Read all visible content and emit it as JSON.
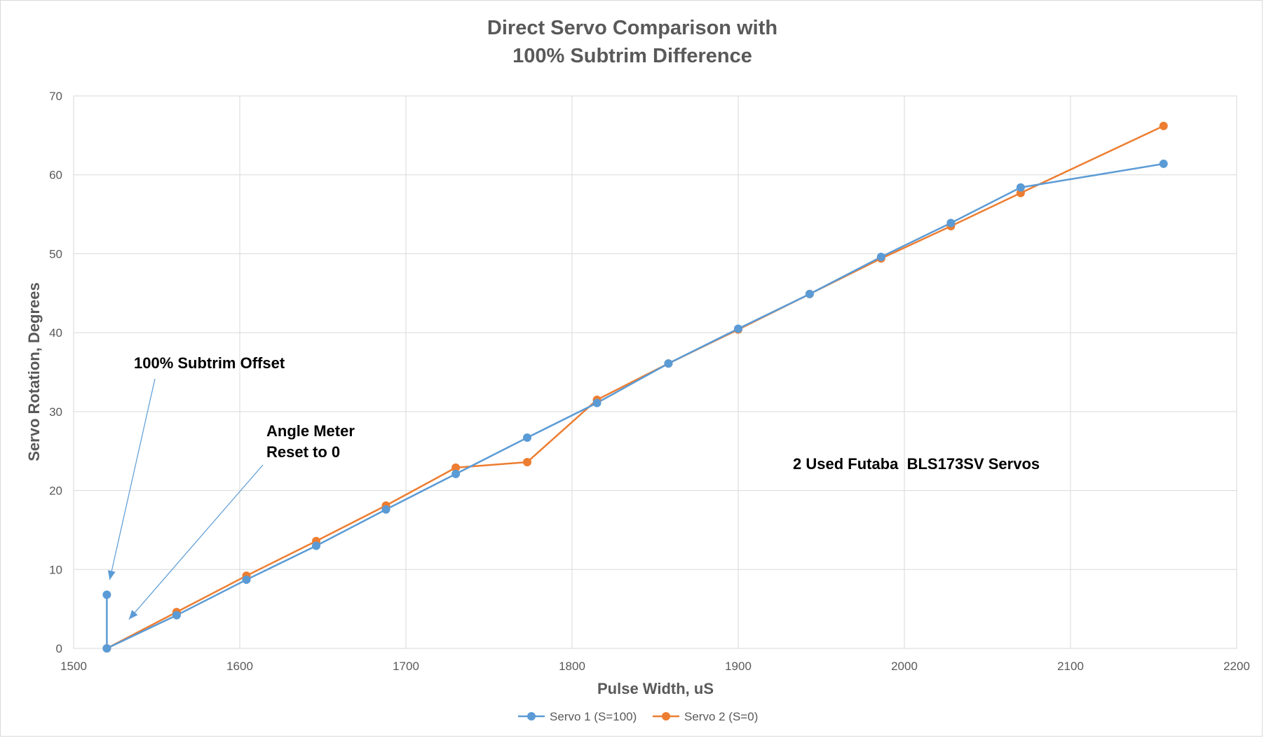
{
  "chart_data": {
    "type": "line",
    "title": [
      "Direct Servo Comparison with",
      "100% Subtrim Difference"
    ],
    "xlabel": "Pulse Width, uS",
    "ylabel": "Servo Rotation, Degrees",
    "xlim": [
      1500,
      2200
    ],
    "ylim": [
      0,
      70
    ],
    "xticks": [
      1500,
      1600,
      1700,
      1800,
      1900,
      2000,
      2100,
      2200
    ],
    "yticks": [
      0,
      10,
      20,
      30,
      40,
      50,
      60,
      70
    ],
    "grid": true,
    "legend_position": "bottom",
    "series": [
      {
        "name": "Servo 1 (S=100)",
        "color": "#5b9bd5",
        "x": [
          1520,
          1520,
          1562,
          1604,
          1646,
          1688,
          1730,
          1773,
          1815,
          1858,
          1900,
          1943,
          1986,
          2028,
          2070,
          2156
        ],
        "y": [
          6.8,
          0,
          4.2,
          8.7,
          13.0,
          17.6,
          22.1,
          26.7,
          31.1,
          36.1,
          40.5,
          44.9,
          49.6,
          53.9,
          58.4,
          61.4
        ]
      },
      {
        "name": "Servo 2 (S=0)",
        "color": "#ed7d31",
        "x": [
          1520,
          1562,
          1604,
          1646,
          1688,
          1730,
          1773,
          1815,
          1858,
          1900,
          1943,
          1986,
          2028,
          2070,
          2156
        ],
        "y": [
          0,
          4.6,
          9.2,
          13.6,
          18.1,
          22.9,
          23.6,
          31.5,
          36.1,
          40.4,
          44.9,
          49.4,
          53.5,
          57.7,
          66.2
        ]
      }
    ],
    "annotations": [
      {
        "text": [
          "100% Subtrim Offset"
        ],
        "points_to": [
          1520,
          8.5
        ]
      },
      {
        "text": [
          "Angle Meter",
          "Reset to 0"
        ],
        "points_to": [
          1532,
          3.5
        ]
      },
      {
        "text": [
          "2 Used Futaba  BLS173SV Servos"
        ]
      }
    ]
  }
}
